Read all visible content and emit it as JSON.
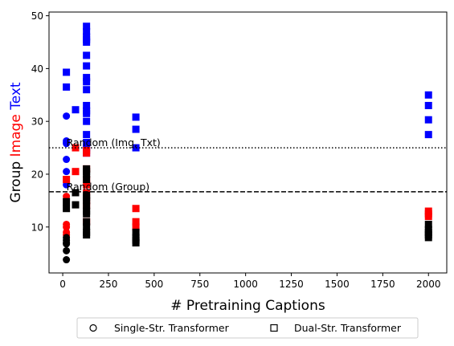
{
  "chart_data": {
    "type": "scatter",
    "xlabel": "# Pretraining Captions",
    "ylabel_parts": [
      {
        "text": "Group ",
        "color": "#000000"
      },
      {
        "text": "Image",
        "color": "#ff0000"
      },
      {
        "text": " Text",
        "color": "#0000ff"
      }
    ],
    "xlim": [
      -75,
      2100
    ],
    "ylim": [
      1.3,
      50.7
    ],
    "xticks": [
      0,
      250,
      500,
      750,
      1000,
      1250,
      1500,
      1750,
      2000
    ],
    "yticks": [
      10,
      20,
      30,
      40,
      50
    ],
    "grid": false,
    "reference_lines": [
      {
        "label": "Random (Img, Txt)",
        "y": 25,
        "style": "dotted"
      },
      {
        "label": "Random (Group)",
        "y": 16.67,
        "style": "dashed"
      }
    ],
    "legend": {
      "placement": "bottom-center",
      "entries": [
        {
          "label": "Single-Str. Transformer",
          "marker": "circle"
        },
        {
          "label": "Dual-Str. Transformer",
          "marker": "square"
        }
      ]
    },
    "colors": {
      "text": "#0000ff",
      "image": "#ff0000",
      "group": "#000000"
    },
    "series": [
      {
        "metric": "text",
        "marker": "circle",
        "color": "#0000ff",
        "x": [
          20,
          20,
          20,
          20,
          20,
          20,
          20
        ],
        "y": [
          31.0,
          26.3,
          26.0,
          25.8,
          22.8,
          20.5,
          18.0
        ]
      },
      {
        "metric": "image",
        "marker": "circle",
        "color": "#ff0000",
        "x": [
          20,
          20,
          20,
          20,
          20
        ],
        "y": [
          15.8,
          10.5,
          10.0,
          9.0,
          8.5
        ]
      },
      {
        "metric": "group",
        "marker": "circle",
        "color": "#000000",
        "x": [
          20,
          20,
          20,
          20,
          20,
          20
        ],
        "y": [
          8.0,
          7.5,
          7.0,
          6.8,
          5.5,
          3.8
        ]
      },
      {
        "metric": "text",
        "marker": "square",
        "color": "#0000ff",
        "x": [
          20,
          20,
          70,
          130,
          130,
          130,
          130,
          130,
          130,
          130,
          130,
          130,
          130,
          130,
          130,
          130,
          130,
          130,
          130,
          130,
          130,
          400,
          400,
          400,
          2000,
          2000,
          2000,
          2000
        ],
        "y": [
          39.3,
          36.5,
          32.2,
          48.0,
          47.0,
          46.0,
          45.5,
          45.0,
          42.5,
          40.5,
          38.3,
          37.5,
          36.0,
          33.0,
          32.0,
          31.5,
          30.0,
          27.5,
          26.0,
          25.0,
          24.0,
          30.8,
          28.5,
          25.0,
          35.0,
          33.0,
          30.3,
          27.5
        ]
      },
      {
        "metric": "image",
        "marker": "square",
        "color": "#ff0000",
        "x": [
          20,
          70,
          70,
          130,
          130,
          130,
          130,
          130,
          130,
          130,
          130,
          130,
          400,
          400,
          400,
          2000,
          2000,
          2000
        ],
        "y": [
          19.0,
          25.0,
          20.5,
          24.5,
          24.0,
          21.0,
          19.0,
          18.0,
          16.5,
          15.0,
          14.0,
          11.0,
          13.5,
          11.0,
          10.0,
          13.0,
          12.5,
          12.0
        ]
      },
      {
        "metric": "group",
        "marker": "square",
        "color": "#000000",
        "x": [
          20,
          20,
          70,
          70,
          130,
          130,
          130,
          130,
          130,
          130,
          130,
          130,
          130,
          130,
          130,
          130,
          130,
          130,
          400,
          400,
          400,
          400,
          2000,
          2000,
          2000,
          2000,
          2000
        ],
        "y": [
          14.8,
          13.5,
          16.5,
          14.2,
          21.0,
          20.5,
          20.0,
          19.0,
          16.0,
          15.5,
          15.0,
          14.0,
          13.0,
          12.5,
          11.0,
          10.0,
          9.0,
          8.5,
          9.0,
          8.0,
          7.5,
          7.0,
          10.5,
          9.5,
          9.0,
          8.5,
          8.0
        ]
      }
    ]
  }
}
